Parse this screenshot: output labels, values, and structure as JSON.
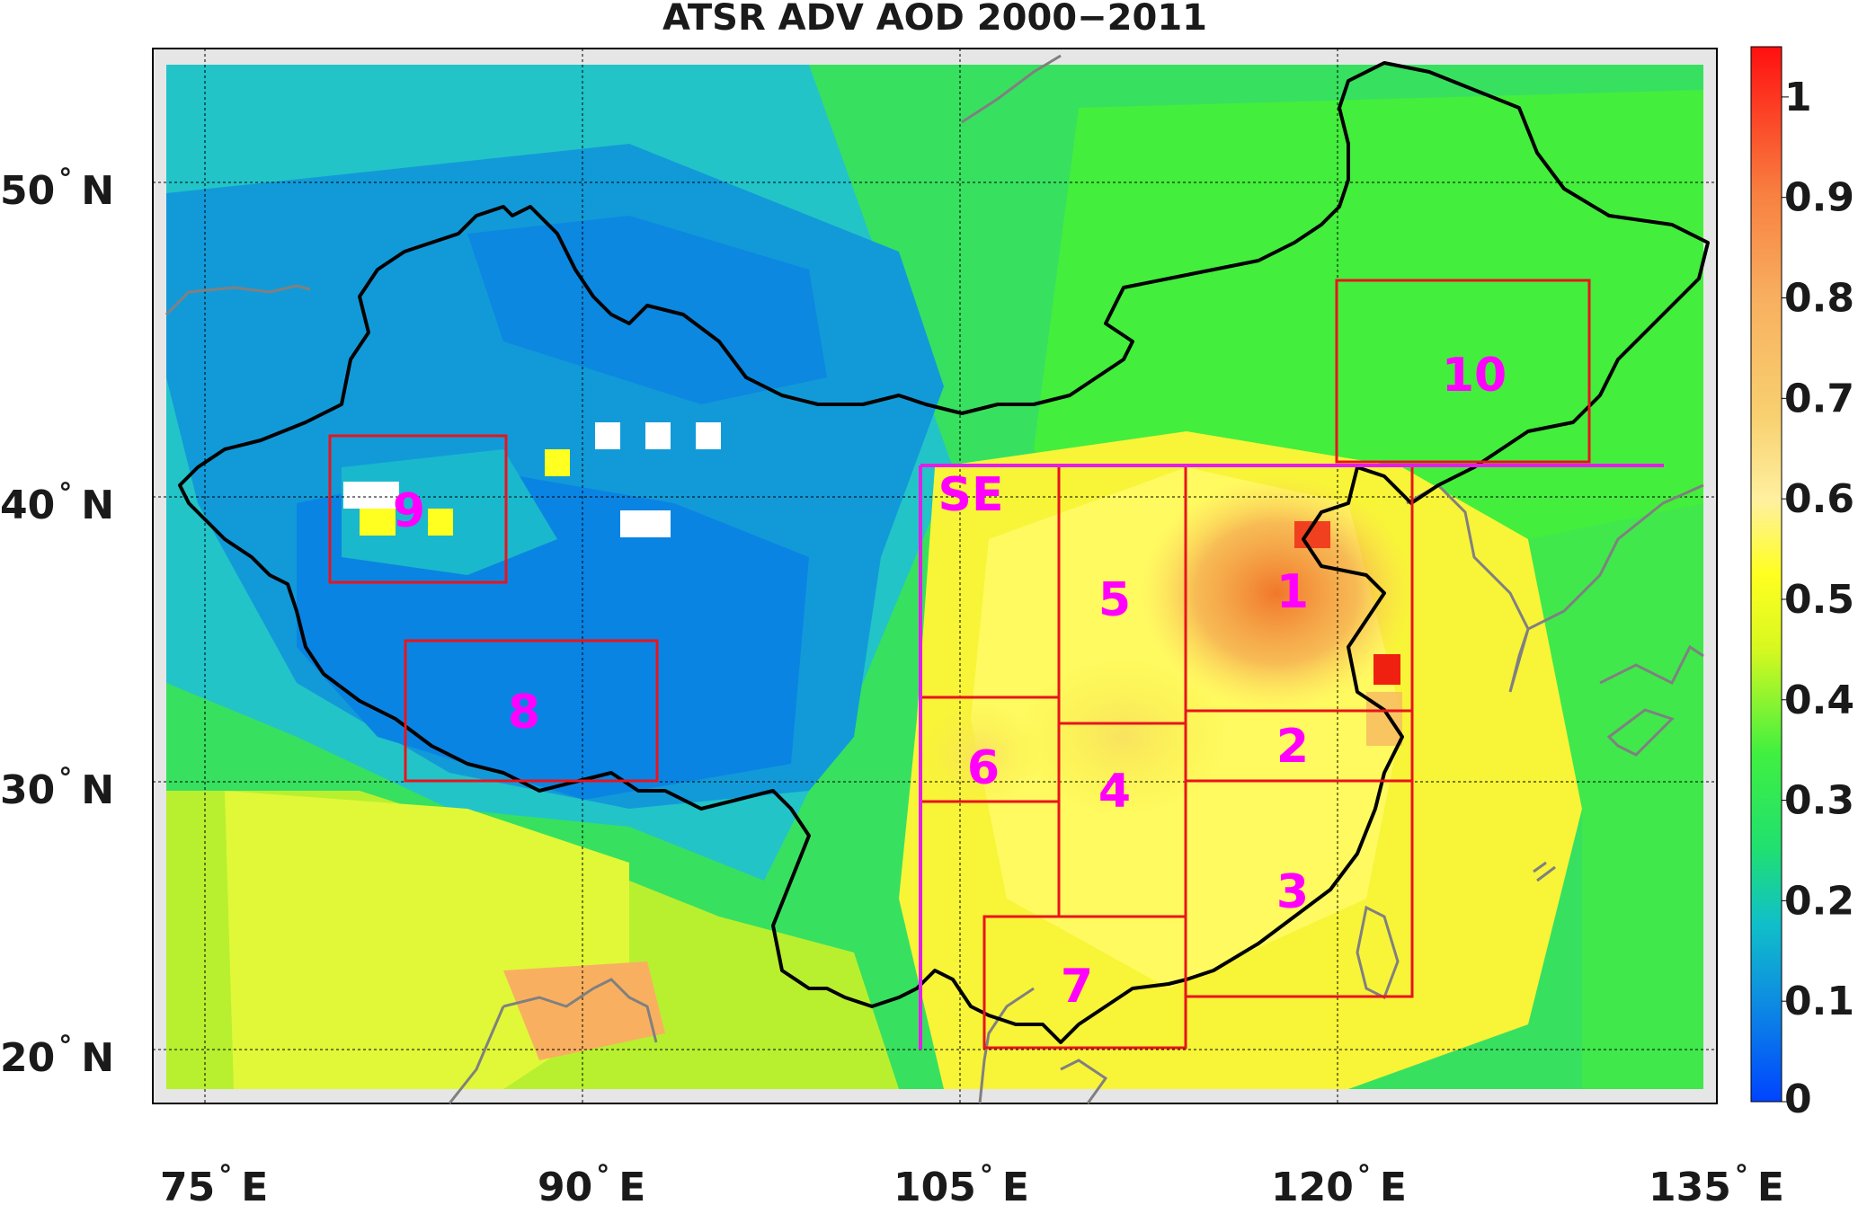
{
  "title": "ATSR ADV AOD 2000−2011",
  "longitude_labels": [
    {
      "deg": "75",
      "hem": "E"
    },
    {
      "deg": "90",
      "hem": "E"
    },
    {
      "deg": "105",
      "hem": "E"
    },
    {
      "deg": "120",
      "hem": "E"
    },
    {
      "deg": "135",
      "hem": "E"
    }
  ],
  "latitude_labels": [
    {
      "deg": "50",
      "hem": "N"
    },
    {
      "deg": "40",
      "hem": "N"
    },
    {
      "deg": "30",
      "hem": "N"
    },
    {
      "deg": "20",
      "hem": "N"
    }
  ],
  "colorbar": {
    "min": 0,
    "max": 1.05,
    "ticks": [
      "0",
      "0.1",
      "0.2",
      "0.3",
      "0.4",
      "0.5",
      "0.6",
      "0.7",
      "0.8",
      "0.9",
      "1"
    ]
  },
  "regions": [
    {
      "label": "1"
    },
    {
      "label": "2"
    },
    {
      "label": "3"
    },
    {
      "label": "4"
    },
    {
      "label": "5"
    },
    {
      "label": "6"
    },
    {
      "label": "7"
    },
    {
      "label": "8"
    },
    {
      "label": "9"
    },
    {
      "label": "10"
    },
    {
      "label": "SE"
    }
  ],
  "colors": {
    "region_box": "#e8141e",
    "se_outline": "#e21ee8",
    "region_text": "#ff00ff",
    "china_border": "#000000",
    "coastline": "#808080"
  }
}
